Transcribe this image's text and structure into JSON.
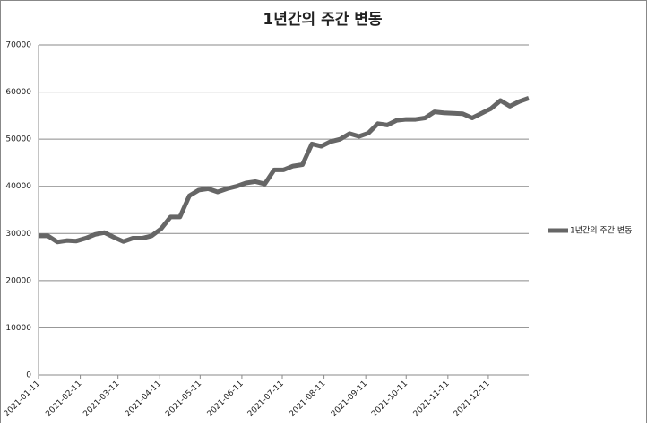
{
  "chart_data": {
    "type": "line",
    "title": "1년간의 주간 변동",
    "x": [
      "2021-01-11",
      "2021-01-18",
      "2021-01-25",
      "2021-02-01",
      "2021-02-08",
      "2021-02-15",
      "2021-02-22",
      "2021-03-01",
      "2021-03-08",
      "2021-03-15",
      "2021-03-22",
      "2021-03-29",
      "2021-04-05",
      "2021-04-12",
      "2021-04-19",
      "2021-04-26",
      "2021-05-03",
      "2021-05-10",
      "2021-05-17",
      "2021-05-24",
      "2021-05-31",
      "2021-06-07",
      "2021-06-14",
      "2021-06-21",
      "2021-06-28",
      "2021-07-05",
      "2021-07-12",
      "2021-07-19",
      "2021-07-26",
      "2021-08-02",
      "2021-08-09",
      "2021-08-16",
      "2021-08-23",
      "2021-08-30",
      "2021-09-06",
      "2021-09-13",
      "2021-09-20",
      "2021-09-27",
      "2021-10-04",
      "2021-10-11",
      "2021-10-18",
      "2021-10-25",
      "2021-11-01",
      "2021-11-08",
      "2021-11-15",
      "2021-11-22",
      "2021-11-29",
      "2021-12-06",
      "2021-12-13",
      "2021-12-20",
      "2021-12-27",
      "2022-01-03",
      "2022-01-10"
    ],
    "series": [
      {
        "name": "1년간의 주간 변동",
        "color": "#666666",
        "values": [
          29500,
          29500,
          28200,
          28500,
          28400,
          29000,
          29800,
          30200,
          29200,
          28300,
          29000,
          29000,
          29500,
          31000,
          33500,
          33500,
          38000,
          39200,
          39500,
          38800,
          39500,
          40000,
          40700,
          41000,
          40500,
          43500,
          43500,
          44300,
          44600,
          49000,
          48500,
          49500,
          50000,
          51200,
          50600,
          51300,
          53300,
          53000,
          54000,
          54200,
          54200,
          54500,
          55800,
          55600,
          55500,
          55400,
          54500,
          55500,
          56500,
          58200,
          57000,
          58000,
          58700
        ]
      }
    ],
    "xlim": [
      "2021-01-11",
      "2022-01-10"
    ],
    "xticks": [
      "2021-01-11",
      "2021-02-11",
      "2021-03-11",
      "2021-04-11",
      "2021-05-11",
      "2021-06-11",
      "2021-07-11",
      "2021-08-11",
      "2021-09-11",
      "2021-10-11",
      "2021-11-11",
      "2021-12-11"
    ],
    "ylim": [
      0,
      70000
    ],
    "yticks": [
      0,
      10000,
      20000,
      30000,
      40000,
      50000,
      60000,
      70000
    ],
    "grid": true
  }
}
